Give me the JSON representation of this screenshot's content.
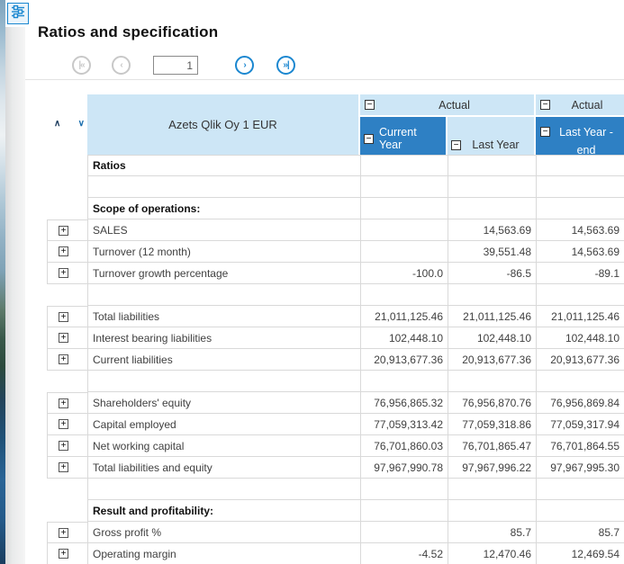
{
  "header": {
    "title": "Ratios and specification"
  },
  "icons": {
    "settings": "sliders",
    "collapse": "−",
    "expand": "+",
    "sort_asc": "∧",
    "sort_desc": "∨",
    "first_page": "|«",
    "prev_page": "‹",
    "next_page": "›",
    "last_page": "»|"
  },
  "pagination": {
    "page_value": "1"
  },
  "colors": {
    "accent_blue": "#1b87d0",
    "header_dark_blue": "#2e80c4",
    "header_light_blue": "#cde6f6",
    "grid_border": "#d9d9d9",
    "disabled_gray": "#c8c8c8"
  },
  "table": {
    "company_header": "Azets Qlik Oy  1 EUR",
    "groups": [
      {
        "label": "Actual"
      },
      {
        "label": "Actual"
      }
    ],
    "columns": [
      {
        "label": "Current Year",
        "selected": true
      },
      {
        "label": "Last Year",
        "selected": false
      },
      {
        "label": "Last Year - end",
        "selected": true
      }
    ],
    "rows": [
      {
        "type": "section",
        "label": "Ratios",
        "values": [
          "",
          "",
          ""
        ]
      },
      {
        "type": "empty",
        "label": "",
        "values": [
          "",
          "",
          ""
        ]
      },
      {
        "type": "section",
        "label": "Scope of operations:",
        "values": [
          "",
          "",
          ""
        ]
      },
      {
        "type": "data",
        "label": "SALES",
        "values": [
          "",
          "14,563.69",
          "14,563.69"
        ]
      },
      {
        "type": "data",
        "label": "Turnover (12 month)",
        "values": [
          "",
          "39,551.48",
          "14,563.69"
        ]
      },
      {
        "type": "data",
        "label": "Turnover growth percentage",
        "values": [
          "-100.0",
          "-86.5",
          "-89.1"
        ]
      },
      {
        "type": "empty",
        "label": "",
        "values": [
          "",
          "",
          ""
        ]
      },
      {
        "type": "data",
        "label": "Total liabilities",
        "values": [
          "21,011,125.46",
          "21,011,125.46",
          "21,011,125.46"
        ]
      },
      {
        "type": "data",
        "label": "Interest bearing liabilities",
        "values": [
          "102,448.10",
          "102,448.10",
          "102,448.10"
        ]
      },
      {
        "type": "data",
        "label": "Current liabilities",
        "values": [
          "20,913,677.36",
          "20,913,677.36",
          "20,913,677.36"
        ]
      },
      {
        "type": "empty",
        "label": "",
        "values": [
          "",
          "",
          ""
        ]
      },
      {
        "type": "data",
        "label": "Shareholders' equity",
        "values": [
          "76,956,865.32",
          "76,956,870.76",
          "76,956,869.84"
        ]
      },
      {
        "type": "data",
        "label": "Capital employed",
        "values": [
          "77,059,313.42",
          "77,059,318.86",
          "77,059,317.94"
        ]
      },
      {
        "type": "data",
        "label": "Net working capital",
        "values": [
          "76,701,860.03",
          "76,701,865.47",
          "76,701,864.55"
        ]
      },
      {
        "type": "data",
        "label": "Total liabilities and equity",
        "values": [
          "97,967,990.78",
          "97,967,996.22",
          "97,967,995.30"
        ]
      },
      {
        "type": "empty",
        "label": "",
        "values": [
          "",
          "",
          ""
        ]
      },
      {
        "type": "section",
        "label": "Result and profitability:",
        "values": [
          "",
          "",
          ""
        ]
      },
      {
        "type": "data",
        "label": "Gross profit %",
        "values": [
          "",
          "85.7",
          "85.7"
        ]
      },
      {
        "type": "data",
        "label": "Operating margin",
        "values": [
          "-4.52",
          "12,470.46",
          "12,469.54"
        ]
      }
    ]
  }
}
